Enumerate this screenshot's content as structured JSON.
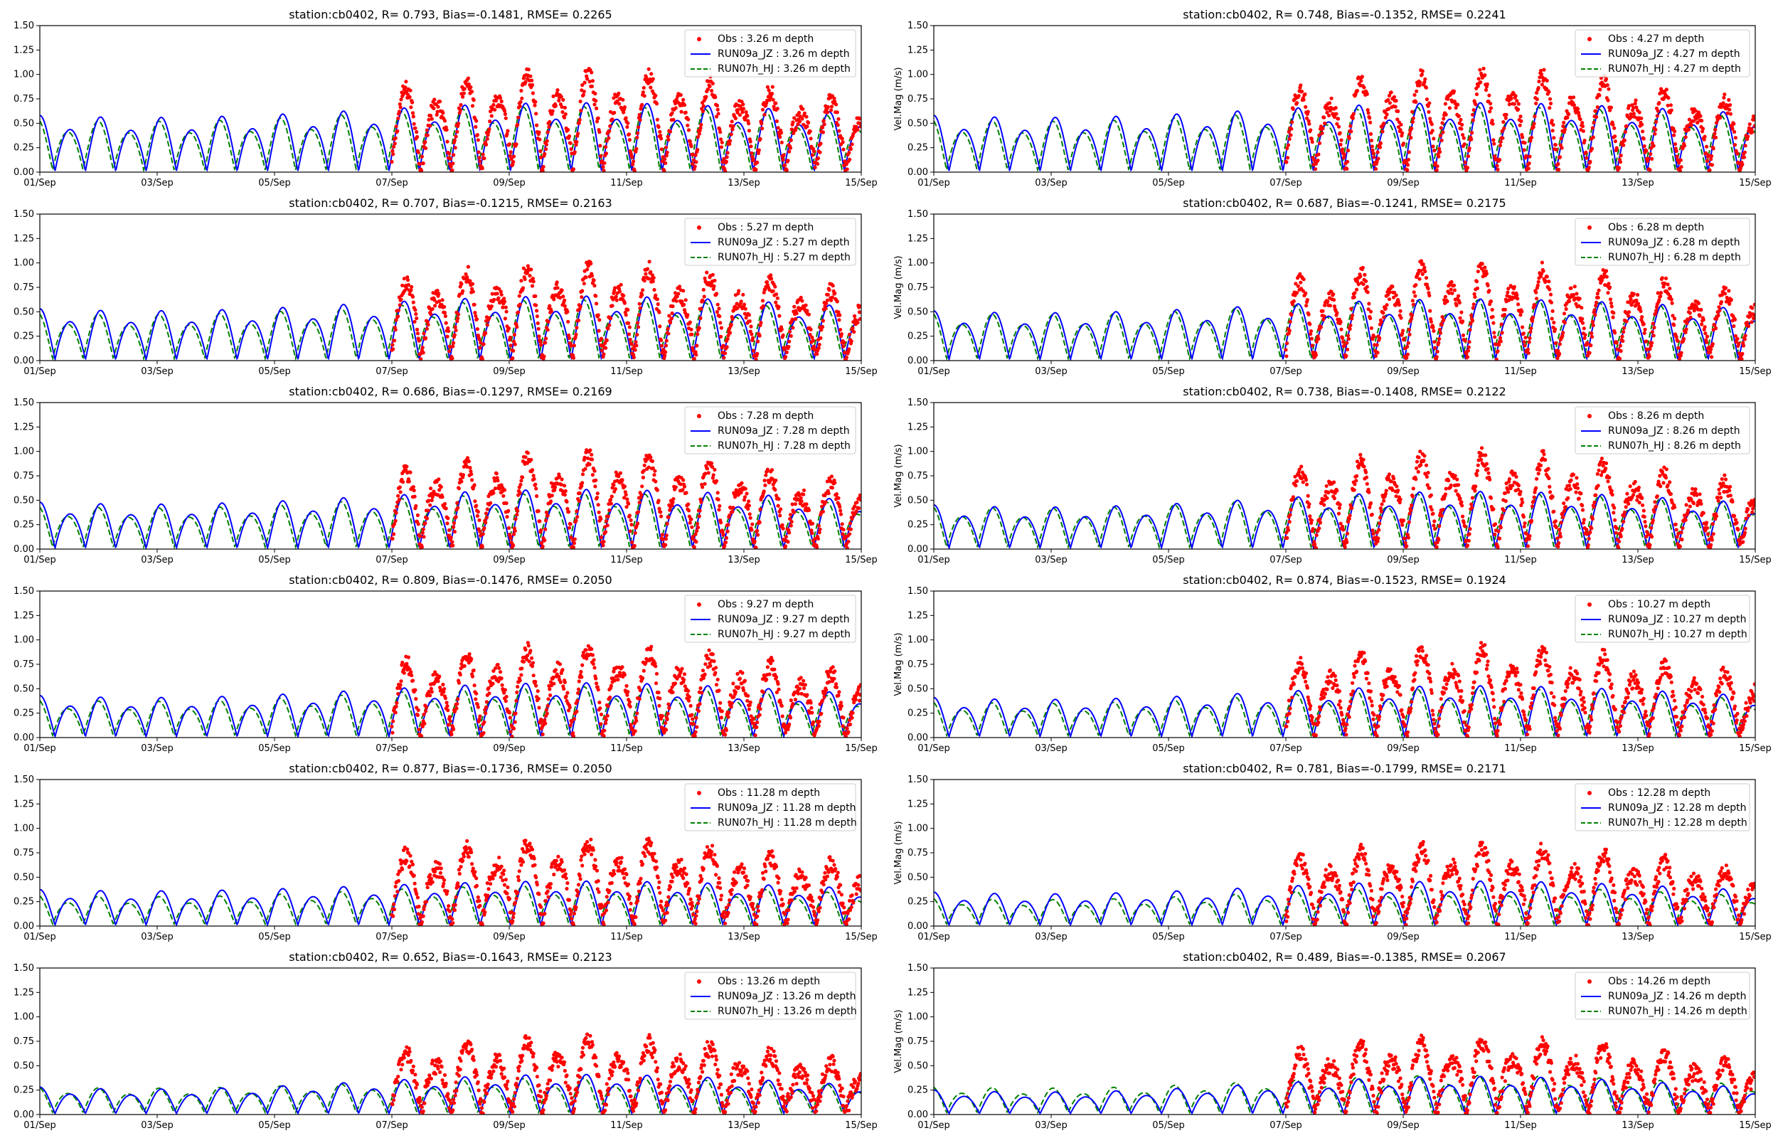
{
  "figure": {
    "station": "cb0402",
    "yaxis_label": "Vel.Mag (m/s)",
    "x_tick_labels": [
      "01/Sep",
      "03/Sep",
      "05/Sep",
      "07/Sep",
      "09/Sep",
      "11/Sep",
      "13/Sep",
      "15/Sep"
    ],
    "y_tick_labels": [
      "0.00",
      "0.25",
      "0.50",
      "0.75",
      "1.00",
      "1.25",
      "1.50"
    ],
    "colors": {
      "obs": "#ff0000",
      "run09a": "#0000ff",
      "run07h": "#008000"
    }
  },
  "chart_data": [
    {
      "type": "line",
      "title": "station:cb0402, R= 0.793, Bias=-0.1481, RMSE= 0.2265",
      "ylabel": "",
      "xlim": [
        0,
        14
      ],
      "ylim": [
        0,
        1.5
      ],
      "obs_start_day": 6.0,
      "legend": [
        "Obs : 3.26 m depth",
        "RUN09a_JZ : 3.26 m depth",
        "RUN07h_HJ : 3.26 m depth"
      ],
      "series": [
        {
          "name": "Obs",
          "style": "points",
          "amplitude_range": [
            0.55,
            1.0
          ]
        },
        {
          "name": "RUN09a_JZ",
          "style": "solid",
          "amplitude_range": [
            0.55,
            0.7
          ]
        },
        {
          "name": "RUN07h_HJ",
          "style": "dashed",
          "amplitude_range": [
            0.5,
            0.65
          ]
        }
      ]
    },
    {
      "type": "line",
      "title": "station:cb0402, R= 0.748, Bias=-0.1352, RMSE= 0.2241",
      "ylabel": "Vel.Mag (m/s)",
      "xlim": [
        0,
        14
      ],
      "ylim": [
        0,
        1.5
      ],
      "obs_start_day": 6.0,
      "legend": [
        "Obs : 4.27 m depth",
        "RUN09a_JZ : 4.27 m depth",
        "RUN07h_HJ : 4.27 m depth"
      ],
      "series": [
        {
          "name": "Obs",
          "style": "points",
          "amplitude_range": [
            0.55,
            1.0
          ]
        },
        {
          "name": "RUN09a_JZ",
          "style": "solid",
          "amplitude_range": [
            0.55,
            0.7
          ]
        },
        {
          "name": "RUN07h_HJ",
          "style": "dashed",
          "amplitude_range": [
            0.5,
            0.65
          ]
        }
      ]
    },
    {
      "type": "line",
      "title": "station:cb0402, R= 0.707, Bias=-0.1215, RMSE= 0.2163",
      "ylabel": "",
      "xlim": [
        0,
        14
      ],
      "ylim": [
        0,
        1.5
      ],
      "obs_start_day": 6.0,
      "legend": [
        "Obs : 5.27 m depth",
        "RUN09a_JZ : 5.27 m depth",
        "RUN07h_HJ : 5.27 m depth"
      ],
      "series": [
        {
          "name": "Obs",
          "style": "points",
          "amplitude_range": [
            0.55,
            0.95
          ]
        },
        {
          "name": "RUN09a_JZ",
          "style": "solid",
          "amplitude_range": [
            0.5,
            0.65
          ]
        },
        {
          "name": "RUN07h_HJ",
          "style": "dashed",
          "amplitude_range": [
            0.45,
            0.6
          ]
        }
      ]
    },
    {
      "type": "line",
      "title": "station:cb0402, R= 0.687, Bias=-0.1241, RMSE= 0.2175",
      "ylabel": "Vel.Mag (m/s)",
      "xlim": [
        0,
        14
      ],
      "ylim": [
        0,
        1.5
      ],
      "obs_start_day": 6.0,
      "legend": [
        "Obs : 6.28 m depth",
        "RUN09a_JZ : 6.28 m depth",
        "RUN07h_HJ : 6.28 m depth"
      ],
      "series": [
        {
          "name": "Obs",
          "style": "points",
          "amplitude_range": [
            0.55,
            0.95
          ]
        },
        {
          "name": "RUN09a_JZ",
          "style": "solid",
          "amplitude_range": [
            0.48,
            0.62
          ]
        },
        {
          "name": "RUN07h_HJ",
          "style": "dashed",
          "amplitude_range": [
            0.45,
            0.6
          ]
        }
      ]
    },
    {
      "type": "line",
      "title": "station:cb0402, R= 0.686, Bias=-0.1297, RMSE= 0.2169",
      "ylabel": "",
      "xlim": [
        0,
        14
      ],
      "ylim": [
        0,
        1.5
      ],
      "obs_start_day": 6.0,
      "legend": [
        "Obs : 7.28 m depth",
        "RUN09a_JZ : 7.28 m depth",
        "RUN07h_HJ : 7.28 m depth"
      ],
      "series": [
        {
          "name": "Obs",
          "style": "points",
          "amplitude_range": [
            0.5,
            0.95
          ]
        },
        {
          "name": "RUN09a_JZ",
          "style": "solid",
          "amplitude_range": [
            0.45,
            0.6
          ]
        },
        {
          "name": "RUN07h_HJ",
          "style": "dashed",
          "amplitude_range": [
            0.4,
            0.55
          ]
        }
      ]
    },
    {
      "type": "line",
      "title": "station:cb0402, R= 0.738, Bias=-0.1408, RMSE= 0.2122",
      "ylabel": "Vel.Mag (m/s)",
      "xlim": [
        0,
        14
      ],
      "ylim": [
        0,
        1.5
      ],
      "obs_start_day": 6.0,
      "legend": [
        "Obs : 8.26 m depth",
        "RUN09a_JZ : 8.26 m depth",
        "RUN07h_HJ : 8.26 m depth"
      ],
      "series": [
        {
          "name": "Obs",
          "style": "points",
          "amplitude_range": [
            0.5,
            0.95
          ]
        },
        {
          "name": "RUN09a_JZ",
          "style": "solid",
          "amplitude_range": [
            0.42,
            0.58
          ]
        },
        {
          "name": "RUN07h_HJ",
          "style": "dashed",
          "amplitude_range": [
            0.4,
            0.55
          ]
        }
      ]
    },
    {
      "type": "line",
      "title": "station:cb0402, R= 0.809, Bias=-0.1476, RMSE= 0.2050",
      "ylabel": "",
      "xlim": [
        0,
        14
      ],
      "ylim": [
        0,
        1.5
      ],
      "obs_start_day": 6.0,
      "legend": [
        "Obs : 9.27 m depth",
        "RUN09a_JZ : 9.27 m depth",
        "RUN07h_HJ : 9.27 m depth"
      ],
      "series": [
        {
          "name": "Obs",
          "style": "points",
          "amplitude_range": [
            0.5,
            0.9
          ]
        },
        {
          "name": "RUN09a_JZ",
          "style": "solid",
          "amplitude_range": [
            0.4,
            0.55
          ]
        },
        {
          "name": "RUN07h_HJ",
          "style": "dashed",
          "amplitude_range": [
            0.35,
            0.5
          ]
        }
      ]
    },
    {
      "type": "line",
      "title": "station:cb0402, R= 0.874, Bias=-0.1523, RMSE= 0.1924",
      "ylabel": "Vel.Mag (m/s)",
      "xlim": [
        0,
        14
      ],
      "ylim": [
        0,
        1.5
      ],
      "obs_start_day": 6.0,
      "legend": [
        "Obs : 10.27 m depth",
        "RUN09a_JZ : 10.27 m depth",
        "RUN07h_HJ : 10.27 m depth"
      ],
      "series": [
        {
          "name": "Obs",
          "style": "points",
          "amplitude_range": [
            0.5,
            0.9
          ]
        },
        {
          "name": "RUN09a_JZ",
          "style": "solid",
          "amplitude_range": [
            0.38,
            0.52
          ]
        },
        {
          "name": "RUN07h_HJ",
          "style": "dashed",
          "amplitude_range": [
            0.33,
            0.48
          ]
        }
      ]
    },
    {
      "type": "line",
      "title": "station:cb0402, R= 0.877, Bias=-0.1736, RMSE= 0.2050",
      "ylabel": "",
      "xlim": [
        0,
        14
      ],
      "ylim": [
        0,
        1.5
      ],
      "obs_start_day": 6.0,
      "legend": [
        "Obs : 11.28 m depth",
        "RUN09a_JZ : 11.28 m depth",
        "RUN07h_HJ : 11.28 m depth"
      ],
      "series": [
        {
          "name": "Obs",
          "style": "points",
          "amplitude_range": [
            0.5,
            0.85
          ]
        },
        {
          "name": "RUN09a_JZ",
          "style": "solid",
          "amplitude_range": [
            0.35,
            0.45
          ]
        },
        {
          "name": "RUN07h_HJ",
          "style": "dashed",
          "amplitude_range": [
            0.28,
            0.4
          ]
        }
      ]
    },
    {
      "type": "line",
      "title": "station:cb0402, R= 0.781, Bias=-0.1799, RMSE= 0.2171",
      "ylabel": "Vel.Mag (m/s)",
      "xlim": [
        0,
        14
      ],
      "ylim": [
        0,
        1.5
      ],
      "obs_start_day": 6.0,
      "legend": [
        "Obs : 12.28 m depth",
        "RUN09a_JZ : 12.28 m depth",
        "RUN07h_HJ : 12.28 m depth"
      ],
      "series": [
        {
          "name": "Obs",
          "style": "points",
          "amplitude_range": [
            0.45,
            0.8
          ]
        },
        {
          "name": "RUN09a_JZ",
          "style": "solid",
          "amplitude_range": [
            0.32,
            0.45
          ]
        },
        {
          "name": "RUN07h_HJ",
          "style": "dashed",
          "amplitude_range": [
            0.25,
            0.38
          ]
        }
      ]
    },
    {
      "type": "line",
      "title": "station:cb0402, R= 0.652, Bias=-0.1643, RMSE= 0.2123",
      "ylabel": "",
      "xlim": [
        0,
        14
      ],
      "ylim": [
        0,
        1.5
      ],
      "obs_start_day": 6.0,
      "legend": [
        "Obs : 13.26 m depth",
        "RUN09a_JZ : 13.26 m depth",
        "RUN07h_HJ : 13.26 m depth"
      ],
      "series": [
        {
          "name": "Obs",
          "style": "points",
          "amplitude_range": [
            0.4,
            0.75
          ]
        },
        {
          "name": "RUN09a_JZ",
          "style": "solid",
          "amplitude_range": [
            0.25,
            0.4
          ]
        },
        {
          "name": "RUN07h_HJ",
          "style": "dashed",
          "amplitude_range": [
            0.25,
            0.35
          ]
        }
      ]
    },
    {
      "type": "line",
      "title": "station:cb0402, R= 0.489, Bias=-0.1385, RMSE= 0.2067",
      "ylabel": "Vel.Mag (m/s)",
      "xlim": [
        0,
        14
      ],
      "ylim": [
        0,
        1.5
      ],
      "obs_start_day": 6.0,
      "legend": [
        "Obs : 14.26 m depth",
        "RUN09a_JZ : 14.26 m depth",
        "RUN07h_HJ : 14.26 m depth"
      ],
      "series": [
        {
          "name": "Obs",
          "style": "points",
          "amplitude_range": [
            0.4,
            0.75
          ]
        },
        {
          "name": "RUN09a_JZ",
          "style": "solid",
          "amplitude_range": [
            0.22,
            0.38
          ]
        },
        {
          "name": "RUN07h_HJ",
          "style": "dashed",
          "amplitude_range": [
            0.25,
            0.38
          ]
        }
      ]
    }
  ]
}
